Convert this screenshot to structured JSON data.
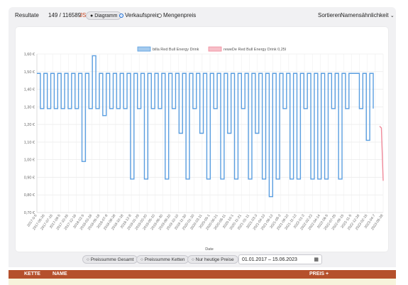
{
  "toolbar": {
    "results_label": "Resultate",
    "results_count": "149 / 116589",
    "json_link": "JSON",
    "diagram_button": "Diagramm",
    "radio_selling": "Verkaufspreis",
    "radio_quantity": "Mengenpreis",
    "sort_label": "Sortieren",
    "sort_value": "Namensähnlichkeit"
  },
  "chart_data": {
    "type": "line",
    "title": "",
    "xlabel": "Date",
    "ylabel": "",
    "ylim": [
      0.7,
      1.6
    ],
    "y_ticks": [
      "0,70 €",
      "0,80 €",
      "0,90 €",
      "1,00 €",
      "1,10 €",
      "1,20 €",
      "1,30 €",
      "1,40 €",
      "1,50 €",
      "1,60 €"
    ],
    "y_tick_values": [
      0.7,
      0.8,
      0.9,
      1.0,
      1.1,
      1.2,
      1.3,
      1.4,
      1.5,
      1.6
    ],
    "x_ticks": [
      "2017-0-5",
      "2017-05-26",
      "2017-07-16",
      "2017-09-5",
      "2017-10-26",
      "2017-12-16",
      "2018-02-5",
      "2018-03-28",
      "2018-05-18",
      "2018-07-8",
      "2018-08-28",
      "2018-10-18",
      "2018-12-8",
      "2019-01-28",
      "2019-03-20",
      "2019-05-10",
      "2019-06-30",
      "2019-08-20",
      "2019-10-10",
      "2019-11-30",
      "2020-01-20",
      "2020-03-11",
      "2020-05-1",
      "2020-06-21",
      "2020-08-11",
      "2020-10-1",
      "2020-11-21",
      "2021-01-11",
      "2021-03-3",
      "2021-04-23",
      "2021-06-13",
      "2021-08-3",
      "2021-09-23",
      "2021-11-13",
      "2022-01-3",
      "2022-02-23",
      "2022-04-14",
      "2022-06-5",
      "2022-07-25",
      "2022-09-15",
      "2022-11-5",
      "2022-12-26",
      "2023-02-15",
      "2023-04-7",
      "2023-05-28"
    ],
    "legend_position": "top",
    "series": [
      {
        "name": "billa Red Bull Energy Drink",
        "color": "#5a9ee0",
        "values": [
          1.49,
          1.29,
          1.49,
          1.29,
          1.49,
          1.29,
          1.49,
          1.29,
          1.49,
          1.29,
          1.49,
          1.29,
          1.49,
          0.99,
          1.49,
          1.29,
          1.59,
          1.29,
          1.49,
          1.25,
          1.49,
          1.29,
          1.49,
          1.29,
          1.49,
          1.29,
          1.49,
          0.89,
          1.49,
          1.29,
          1.49,
          0.89,
          1.49,
          1.29,
          1.49,
          1.29,
          1.49,
          0.89,
          1.49,
          1.29,
          1.49,
          1.15,
          1.49,
          0.89,
          1.49,
          1.29,
          1.49,
          1.15,
          1.49,
          0.89,
          1.49,
          1.29,
          1.49,
          0.89,
          1.49,
          1.15,
          1.49,
          0.89,
          1.49,
          1.29,
          1.49,
          0.89,
          1.49,
          1.15,
          1.49,
          0.89,
          1.49,
          0.79,
          1.49,
          0.89,
          1.49,
          1.29,
          1.49,
          0.89,
          1.49,
          0.89,
          1.49,
          1.29,
          1.49,
          0.89,
          1.49,
          0.89,
          1.49,
          0.89,
          1.49,
          1.29,
          1.49,
          0.89,
          1.49,
          1.29,
          1.49,
          1.49,
          1.49,
          1.29,
          1.49,
          1.11,
          1.49,
          1.29
        ]
      },
      {
        "name": "reweDe Red Bull Energy Drink 0,25l",
        "color": "#f08a9a",
        "values": [
          1.19,
          1.18,
          0.88
        ]
      }
    ]
  },
  "buttons": {
    "sum_total": "Preissumme Gesamt",
    "sum_chains": "Preissumme Ketten",
    "today_only": "Nur heutige Preise"
  },
  "date_range": "01.01.2017 – 15.06.2023",
  "table": {
    "col_chain": "KETTE",
    "col_name": "NAME",
    "col_price": "PREIS +"
  }
}
